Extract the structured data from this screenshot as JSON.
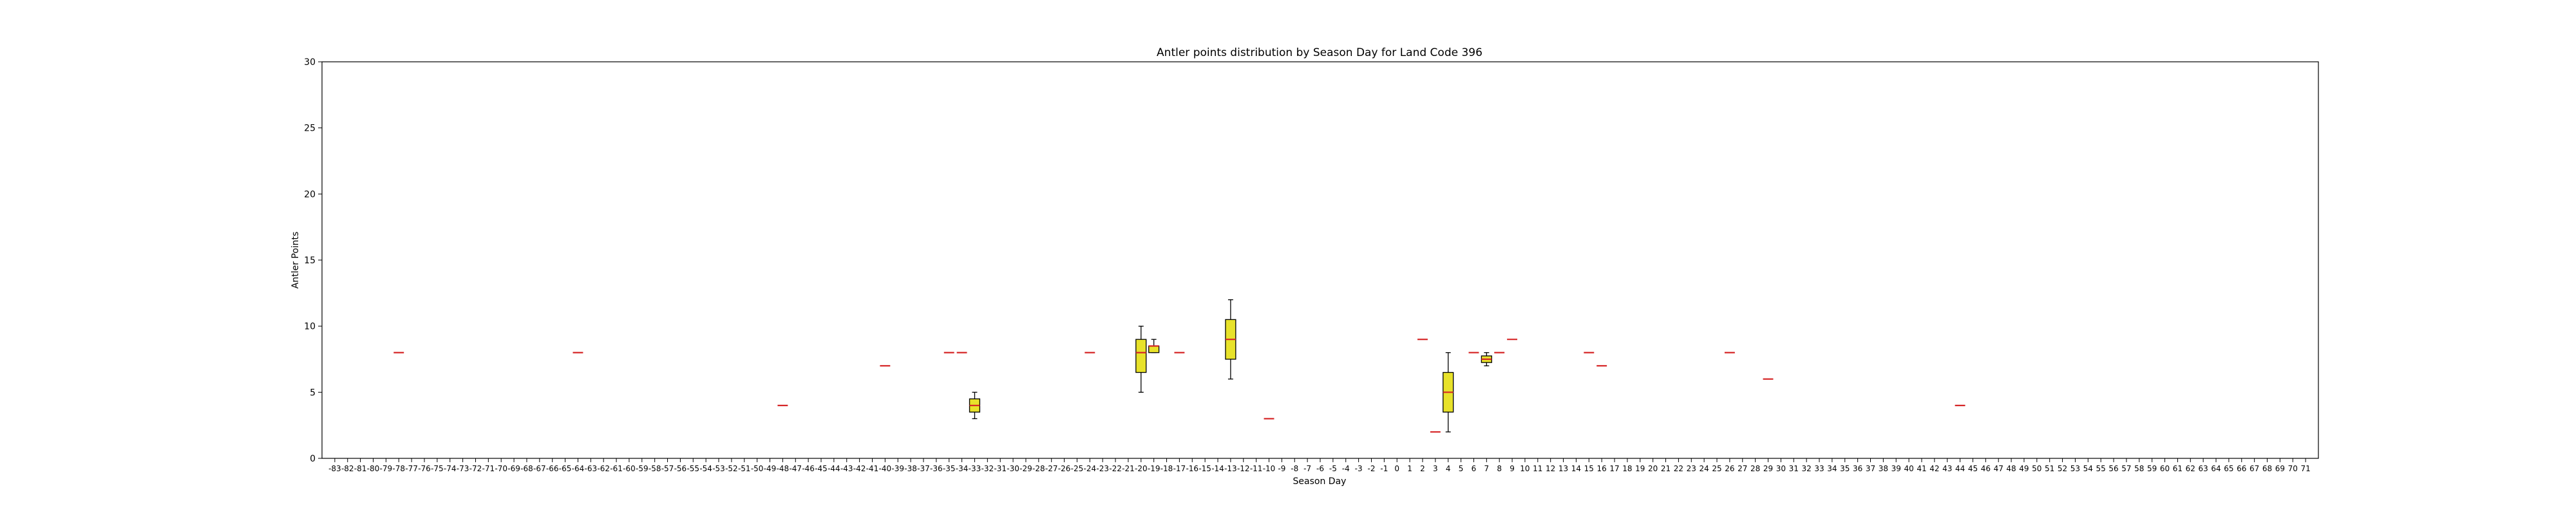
{
  "chart_data": {
    "type": "box",
    "title": "Antler points distribution by Season Day for Land Code 396",
    "xlabel": "Season Day",
    "ylabel": "Antler Points",
    "ylim": [
      0,
      30
    ],
    "yticks": [
      0,
      5,
      10,
      15,
      20,
      25,
      30
    ],
    "x_range": [
      -83,
      71
    ],
    "grid": false,
    "colors": {
      "box_fill": "#e8e22a",
      "median": "#d62728",
      "outline": "#000000",
      "whisker": "#000000"
    },
    "boxes": [
      {
        "day": -78,
        "min": 8,
        "q1": 8,
        "median": 8,
        "q3": 8,
        "max": 8
      },
      {
        "day": -64,
        "min": 8,
        "q1": 8,
        "median": 8,
        "q3": 8,
        "max": 8
      },
      {
        "day": -48,
        "min": 4,
        "q1": 4,
        "median": 4,
        "q3": 4,
        "max": 4
      },
      {
        "day": -40,
        "min": 7,
        "q1": 7,
        "median": 7,
        "q3": 7,
        "max": 7
      },
      {
        "day": -35,
        "min": 8,
        "q1": 8,
        "median": 8,
        "q3": 8,
        "max": 8
      },
      {
        "day": -34,
        "min": 8,
        "q1": 8,
        "median": 8,
        "q3": 8,
        "max": 8
      },
      {
        "day": -33,
        "min": 3,
        "q1": 3.5,
        "median": 4,
        "q3": 4.5,
        "max": 5
      },
      {
        "day": -24,
        "min": 8,
        "q1": 8,
        "median": 8,
        "q3": 8,
        "max": 8
      },
      {
        "day": -20,
        "min": 5,
        "q1": 6.5,
        "median": 8,
        "q3": 9,
        "max": 10
      },
      {
        "day": -19,
        "min": 8,
        "q1": 8,
        "median": 8.5,
        "q3": 8.5,
        "max": 9
      },
      {
        "day": -17,
        "min": 8,
        "q1": 8,
        "median": 8,
        "q3": 8,
        "max": 8
      },
      {
        "day": -13,
        "min": 6,
        "q1": 7.5,
        "median": 9,
        "q3": 10.5,
        "max": 12
      },
      {
        "day": -10,
        "min": 3,
        "q1": 3,
        "median": 3,
        "q3": 3,
        "max": 3
      },
      {
        "day": 2,
        "min": 9,
        "q1": 9,
        "median": 9,
        "q3": 9,
        "max": 9
      },
      {
        "day": 3,
        "min": 2,
        "q1": 2,
        "median": 2,
        "q3": 2,
        "max": 2
      },
      {
        "day": 4,
        "min": 2,
        "q1": 3.5,
        "median": 5,
        "q3": 6.5,
        "max": 8
      },
      {
        "day": 6,
        "min": 8,
        "q1": 8,
        "median": 8,
        "q3": 8,
        "max": 8
      },
      {
        "day": 7,
        "min": 7,
        "q1": 7.25,
        "median": 7.5,
        "q3": 7.75,
        "max": 8
      },
      {
        "day": 8,
        "min": 8,
        "q1": 8,
        "median": 8,
        "q3": 8,
        "max": 8
      },
      {
        "day": 9,
        "min": 9,
        "q1": 9,
        "median": 9,
        "q3": 9,
        "max": 9
      },
      {
        "day": 15,
        "min": 8,
        "q1": 8,
        "median": 8,
        "q3": 8,
        "max": 8
      },
      {
        "day": 16,
        "min": 7,
        "q1": 7,
        "median": 7,
        "q3": 7,
        "max": 7
      },
      {
        "day": 26,
        "min": 8,
        "q1": 8,
        "median": 8,
        "q3": 8,
        "max": 8
      },
      {
        "day": 29,
        "min": 6,
        "q1": 6,
        "median": 6,
        "q3": 6,
        "max": 6
      },
      {
        "day": 44,
        "min": 4,
        "q1": 4,
        "median": 4,
        "q3": 4,
        "max": 4
      }
    ]
  }
}
